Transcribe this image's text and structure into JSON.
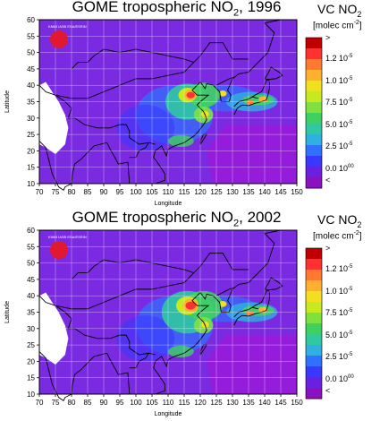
{
  "panels": [
    {
      "title": "GOME tropospheric NO",
      "title_sub": "2",
      "title_year": ", 1996",
      "hotspot_scale": 0.8,
      "logo_text": "KNMI IASB ESA/ESRIN"
    },
    {
      "title": "GOME tropospheric NO",
      "title_sub": "2",
      "title_year": ", 2002",
      "hotspot_scale": 1.0,
      "logo_text": "KNMI IASB ESA/ESRIN"
    }
  ],
  "colorbar": {
    "title": "VC NO",
    "title_sub": "2",
    "unit": "[molec cm",
    "unit_sup": "-2",
    "unit_end": "]",
    "top_label": ">",
    "bottom_label": "<",
    "labels": [
      {
        "mant": "1.2 10",
        "exp": "-5"
      },
      {
        "mant": "1.0 10",
        "exp": "-5"
      },
      {
        "mant": "7.5 10",
        "exp": "-5"
      },
      {
        "mant": "5.0 10",
        "exp": "-5"
      },
      {
        "mant": "2.5 10",
        "exp": "-5"
      },
      {
        "mant": "0.0 10",
        "exp": "00"
      }
    ],
    "colors": [
      "#c00000",
      "#ff3030",
      "#ff7a30",
      "#ffb030",
      "#f0e020",
      "#c8e820",
      "#80e040",
      "#40d060",
      "#30c8a0",
      "#30b0e0",
      "#3070ff",
      "#3a38ff",
      "#6a20e0",
      "#8a10c0"
    ]
  },
  "axes": {
    "xlabel": "Longitude",
    "ylabel": "Latitude",
    "xticks": [
      "70",
      "75",
      "80",
      "85",
      "90",
      "95",
      "100",
      "105",
      "110",
      "115",
      "120",
      "125",
      "130",
      "135",
      "140",
      "145",
      "150"
    ],
    "yticks": [
      "60",
      "55",
      "50",
      "45",
      "40",
      "35",
      "30",
      "25",
      "20",
      "15",
      "10"
    ]
  },
  "colors": {
    "background": "#7a2ae0",
    "missing": "#ffffff",
    "ocean": "#9a1ad8",
    "coast": "#000000",
    "grid": "#ffffff"
  }
}
